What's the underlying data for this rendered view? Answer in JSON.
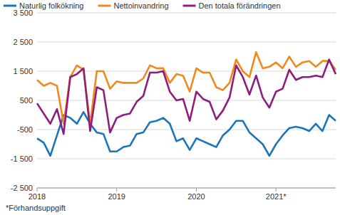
{
  "chart_data": {
    "type": "line",
    "note": "*Förhandsuppgift",
    "legend": "top",
    "grid": true,
    "categories": [
      "2018",
      null,
      null,
      null,
      null,
      null,
      null,
      null,
      null,
      null,
      null,
      null,
      "2019",
      null,
      null,
      null,
      null,
      null,
      null,
      null,
      null,
      null,
      null,
      null,
      "2020",
      null,
      null,
      null,
      null,
      null,
      null,
      null,
      null,
      null,
      null,
      null,
      "2021*",
      null,
      null,
      null,
      null,
      null,
      null,
      null,
      null,
      null
    ],
    "ylim": [
      -2500,
      3500
    ],
    "yticks": [
      {
        "value": -2500,
        "label": "-2 500"
      },
      {
        "value": -1500,
        "label": "-1 500"
      },
      {
        "value": -500,
        "label": "-500"
      },
      {
        "value": 500,
        "label": "500"
      },
      {
        "value": 1500,
        "label": "1 500"
      },
      {
        "value": 2500,
        "label": "2 500"
      },
      {
        "value": 3500,
        "label": "3 500"
      }
    ],
    "series": [
      {
        "name": "Naturlig folkökning",
        "color": "#1b75bb",
        "values": [
          -800,
          -950,
          -1400,
          -700,
          0,
          -100,
          -300,
          100,
          -300,
          -600,
          -650,
          -1250,
          -1250,
          -1100,
          -1050,
          -650,
          -600,
          -250,
          -200,
          -100,
          -300,
          -900,
          -800,
          -1200,
          -800,
          -900,
          -1000,
          -1100,
          -700,
          -500,
          -200,
          -200,
          -600,
          -800,
          -1000,
          -1400,
          -1000,
          -700,
          -450,
          -400,
          -450,
          -550,
          -300,
          -550,
          0,
          -200
        ]
      },
      {
        "name": "Nettoinvandring",
        "color": "#f0891e",
        "values": [
          1200,
          1000,
          1100,
          1000,
          -300,
          1300,
          1700,
          1550,
          -300,
          1500,
          1500,
          900,
          1150,
          1100,
          1100,
          1100,
          1250,
          1700,
          1600,
          1600,
          1100,
          1400,
          1350,
          800,
          1600,
          1450,
          1450,
          950,
          850,
          1100,
          1900,
          1500,
          1300,
          2150,
          1600,
          1650,
          1800,
          1600,
          2000,
          1650,
          1800,
          1850,
          1650,
          1850,
          1850,
          1550
        ]
      },
      {
        "name": "Den totala förändringen",
        "color": "#8e1d7e",
        "values": [
          400,
          50,
          -300,
          200,
          -650,
          1300,
          1400,
          1600,
          -550,
          950,
          850,
          -600,
          -100,
          0,
          50,
          450,
          650,
          1450,
          1450,
          1500,
          800,
          500,
          550,
          -200,
          800,
          550,
          450,
          -150,
          150,
          600,
          1700,
          1300,
          700,
          1350,
          600,
          250,
          800,
          900,
          1550,
          1200,
          1300,
          1300,
          1350,
          1300,
          1900,
          1400
        ]
      }
    ]
  }
}
